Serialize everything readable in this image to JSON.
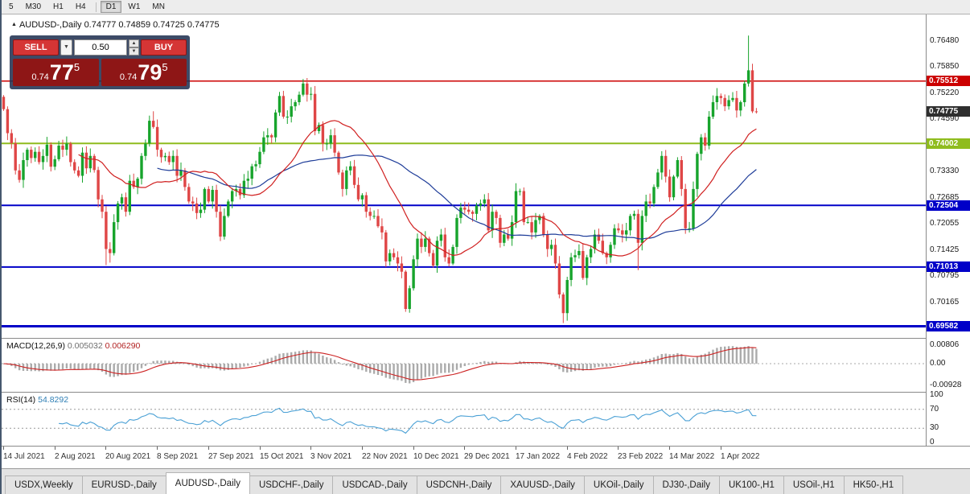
{
  "toolbar": {
    "timeframes": [
      "5",
      "M30",
      "H1",
      "H4",
      "D1",
      "W1",
      "MN"
    ],
    "active": "D1",
    "separator_after_index": 3
  },
  "chart": {
    "title": {
      "symbol": "AUDUSD-,Daily",
      "open": "0.74777",
      "high": "0.74859",
      "low": "0.74725",
      "close": "0.74775"
    },
    "trade_panel": {
      "sell_label": "SELL",
      "buy_label": "BUY",
      "volume": "0.50",
      "sell_small": "0.74",
      "sell_big": "77",
      "sell_sup": "5",
      "buy_small": "0.74",
      "buy_big": "79",
      "buy_sup": "5"
    }
  },
  "chart_data": {
    "type": "candlestick",
    "symbol": "AUDUSD",
    "timeframe": "Daily",
    "y_min": 0.693,
    "y_max": 0.7712,
    "current_price": 0.74775,
    "axis_ticks": [
      0.7648,
      0.7585,
      0.7522,
      0.7459,
      0.7333,
      0.72685,
      0.72055,
      0.71425,
      0.70795,
      0.70165
    ],
    "hlines": [
      {
        "price": 0.75512,
        "color": "#cc0000",
        "width": 1.5
      },
      {
        "price": 0.74002,
        "color": "#8fbc1e",
        "width": 2
      },
      {
        "price": 0.72504,
        "color": "#0000c8",
        "width": 2
      },
      {
        "price": 0.71013,
        "color": "#0000c8",
        "width": 2
      },
      {
        "price": 0.69582,
        "color": "#0000c8",
        "width": 3
      }
    ],
    "current_tag_color": "#2e2e2e",
    "up_color": "#17a42c",
    "down_color": "#df4646",
    "ma_fast_period": 20,
    "ma_slow_period": 40,
    "ma_fast_color": "#d02020",
    "ma_slow_color": "#1f3d99",
    "x_labels": [
      "14 Jul 2021",
      "2 Aug 2021",
      "20 Aug 2021",
      "8 Sep 2021",
      "27 Sep 2021",
      "15 Oct 2021",
      "3 Nov 2021",
      "22 Nov 2021",
      "10 Dec 2021",
      "29 Dec 2021",
      "17 Jan 2022",
      "4 Feb 2022",
      "23 Feb 2022",
      "14 Mar 2022",
      "1 Apr 2022"
    ],
    "label_step": 13,
    "first_open": 0.7513,
    "closes": [
      0.7483,
      0.7425,
      0.7401,
      0.7335,
      0.7312,
      0.736,
      0.7385,
      0.7365,
      0.738,
      0.7355,
      0.737,
      0.7397,
      0.7344,
      0.7362,
      0.7395,
      0.7385,
      0.74,
      0.7355,
      0.7335,
      0.7322,
      0.7378,
      0.734,
      0.737,
      0.7336,
      0.7265,
      0.7235,
      0.7145,
      0.7135,
      0.721,
      0.7255,
      0.727,
      0.7235,
      0.731,
      0.7295,
      0.7315,
      0.737,
      0.74,
      0.7455,
      0.744,
      0.7385,
      0.7367,
      0.737,
      0.7355,
      0.737,
      0.7322,
      0.7335,
      0.7295,
      0.726,
      0.7255,
      0.7232,
      0.724,
      0.729,
      0.726,
      0.7288,
      0.7235,
      0.7175,
      0.7225,
      0.726,
      0.7285,
      0.729,
      0.7275,
      0.731,
      0.7315,
      0.7345,
      0.735,
      0.738,
      0.7415,
      0.742,
      0.7415,
      0.7475,
      0.7515,
      0.7465,
      0.7465,
      0.749,
      0.75,
      0.7518,
      0.7545,
      0.7518,
      0.752,
      0.743,
      0.7445,
      0.74,
      0.74,
      0.742,
      0.7378,
      0.733,
      0.729,
      0.7335,
      0.7345,
      0.73,
      0.7265,
      0.7275,
      0.7235,
      0.7225,
      0.7225,
      0.72,
      0.7185,
      0.7115,
      0.7135,
      0.7125,
      0.711,
      0.709,
      0.7,
      0.705,
      0.712,
      0.717,
      0.715,
      0.717,
      0.7135,
      0.7105,
      0.7165,
      0.718,
      0.7125,
      0.711,
      0.715,
      0.722,
      0.7245,
      0.724,
      0.7235,
      0.723,
      0.725,
      0.7255,
      0.7265,
      0.719,
      0.7235,
      0.722,
      0.716,
      0.718,
      0.717,
      0.721,
      0.7285,
      0.7285,
      0.721,
      0.721,
      0.7185,
      0.7215,
      0.7225,
      0.718,
      0.7145,
      0.7155,
      0.711,
      0.7035,
      0.699,
      0.707,
      0.7125,
      0.713,
      0.714,
      0.7075,
      0.7125,
      0.7145,
      0.718,
      0.7165,
      0.7135,
      0.7125,
      0.7155,
      0.7195,
      0.719,
      0.718,
      0.719,
      0.7225,
      0.723,
      0.716,
      0.7225,
      0.726,
      0.7255,
      0.7295,
      0.733,
      0.737,
      0.732,
      0.727,
      0.732,
      0.736,
      0.729,
      0.7195,
      0.7195,
      0.729,
      0.7375,
      0.7415,
      0.7395,
      0.7465,
      0.75,
      0.7515,
      0.751,
      0.749,
      0.7505,
      0.751,
      0.748,
      0.75,
      0.7545,
      0.7577,
      0.74777,
      0.74775
    ],
    "wick_overrides": {
      "26": [
        null,
        0.7106
      ],
      "27": [
        null,
        0.7112
      ],
      "38": [
        0.7478,
        null
      ],
      "76": [
        0.7556,
        null
      ],
      "102": [
        null,
        0.6993
      ],
      "142": [
        null,
        0.6966
      ],
      "161": [
        null,
        0.7094
      ],
      "189": [
        0.7661,
        null
      ],
      "190": [
        0.7593,
        null
      ],
      "191": [
        0.74859,
        0.74725
      ]
    },
    "macd": {
      "name": "MACD(12,26,9)",
      "value_main": "0.005032",
      "value_signal": "0.006290",
      "params": [
        12,
        26,
        9
      ],
      "ticks": [
        0.00806,
        0,
        -0.00928
      ],
      "tick_labels": [
        "0.00806",
        "0.00",
        "-0.00928"
      ],
      "y_min": -0.0122,
      "y_max": 0.0108,
      "hist_color": "#ababab",
      "signal_color": "#cc2222"
    },
    "rsi": {
      "name": "RSI(14)",
      "value": "54.8292",
      "period": 14,
      "ticks": [
        100,
        70,
        30,
        0
      ],
      "levels": [
        70,
        30
      ],
      "color": "#4aa0d5"
    }
  },
  "tabs": {
    "items": [
      "USDX,Weekly",
      "EURUSD-,Daily",
      "AUDUSD-,Daily",
      "USDCHF-,Daily",
      "USDCAD-,Daily",
      "USDCNH-,Daily",
      "XAUUSD-,Daily",
      "UKOil-,Daily",
      "DJ30-,Daily",
      "UK100-,H1",
      "USOil-,H1",
      "HK50-,H1"
    ],
    "active": "AUDUSD-,Daily"
  }
}
